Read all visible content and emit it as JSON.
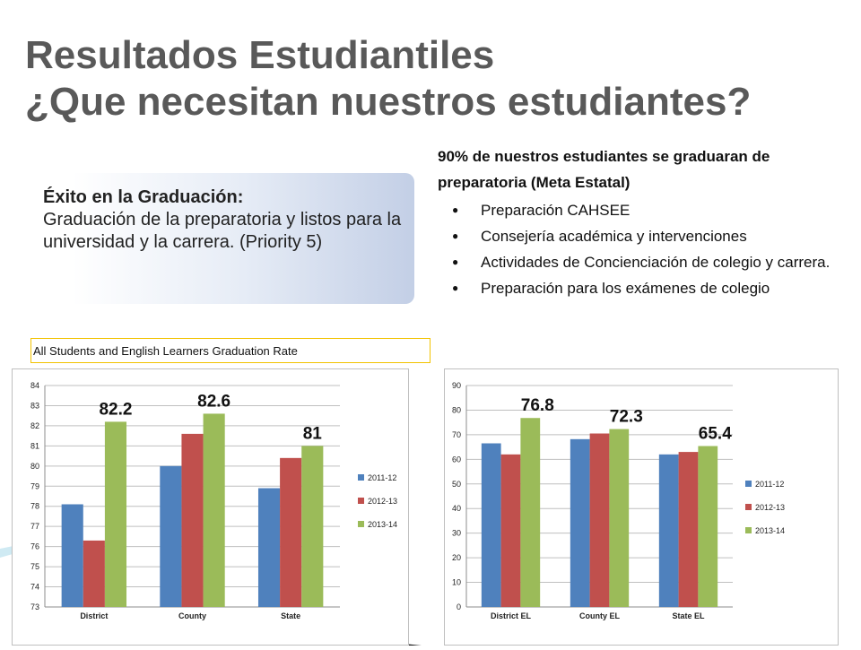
{
  "slide": {
    "title_line1": "Resultados Estudiantiles",
    "title_line2": "¿Que necesitan nuestros estudiantes?"
  },
  "goal_box": {
    "heading": "Éxito en la Graduación:",
    "body": "Graduación de la preparatoria y listos para la universidad y la carrera. (Priority 5)"
  },
  "target": {
    "heading": "90% de nuestros estudiantes se graduaran de preparatoria (Meta Estatal)",
    "bullets": [
      "Preparación CAHSEE",
      "Consejería académica y intervenciones",
      "Actividades de Concienciación de colegio y carrera.",
      "Preparación para los exámenes de colegio"
    ]
  },
  "chart_caption": "All Students and English Learners Graduation Rate",
  "chart_data": [
    {
      "type": "bar",
      "categories": [
        "District",
        "County",
        "State"
      ],
      "series": [
        {
          "name": "2011-12",
          "color": "#4f81bd",
          "values": [
            78.1,
            80.0,
            78.9
          ]
        },
        {
          "name": "2012-13",
          "color": "#c0504d",
          "values": [
            76.3,
            81.6,
            80.4
          ]
        },
        {
          "name": "2013-14",
          "color": "#9bbb59",
          "values": [
            82.2,
            82.6,
            81.0
          ]
        }
      ],
      "data_labels": [
        "82.2",
        "82.6",
        "81"
      ],
      "ylim": [
        73,
        84
      ],
      "yticks": [
        73,
        74,
        75,
        76,
        77,
        78,
        79,
        80,
        81,
        82,
        83,
        84
      ],
      "grid": true,
      "legend": "right"
    },
    {
      "type": "bar",
      "categories": [
        "District EL",
        "County EL",
        "State EL"
      ],
      "series": [
        {
          "name": "2011-12",
          "color": "#4f81bd",
          "values": [
            66.5,
            68.2,
            62.0
          ]
        },
        {
          "name": "2012-13",
          "color": "#c0504d",
          "values": [
            62.0,
            70.5,
            63.0
          ]
        },
        {
          "name": "2013-14",
          "color": "#9bbb59",
          "values": [
            76.8,
            72.3,
            65.4
          ]
        }
      ],
      "data_labels": [
        "76.8",
        "72.3",
        "65.4"
      ],
      "ylim": [
        0,
        90
      ],
      "yticks": [
        0,
        10,
        20,
        30,
        40,
        50,
        60,
        70,
        80,
        90
      ],
      "grid": true,
      "legend": "right"
    }
  ]
}
